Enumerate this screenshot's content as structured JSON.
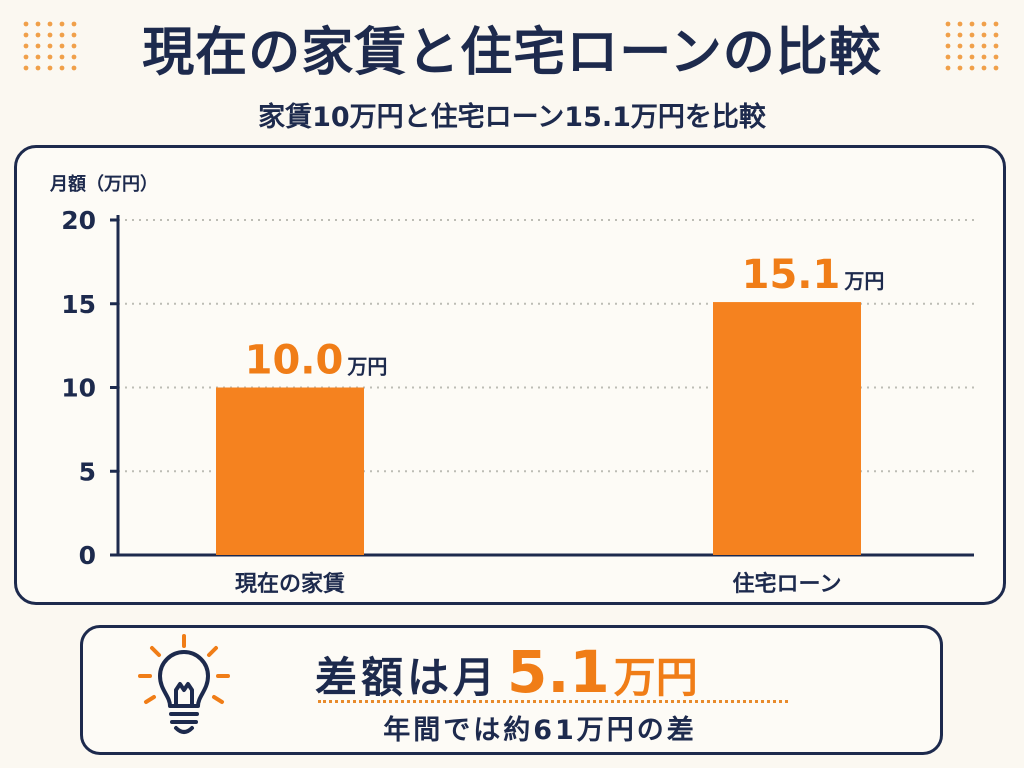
{
  "title": "現在の家賃と住宅ローンの比較",
  "subtitle": "家賃10万円と住宅ローン15.1万円を比較",
  "chart_data": {
    "type": "bar",
    "categories": [
      "現在の家賃",
      "住宅ローン"
    ],
    "values": [
      10.0,
      15.1
    ],
    "value_labels": [
      "10.0",
      "15.1"
    ],
    "value_unit": "万円",
    "ylabel": "月額（万円）",
    "ylim": [
      0,
      20
    ],
    "yticks": [
      0,
      5,
      10,
      15,
      20
    ],
    "grid": true,
    "bar_color": "#f5821f",
    "label_color": "#f07d17"
  },
  "summary": {
    "headline_prefix": "差額は月",
    "headline_value": "5.1",
    "headline_unit": "万円",
    "subtext": "年間では約61万円の差"
  },
  "icons": {
    "summary_icon": "lightbulb-icon",
    "decoration": "dot-grid-icon"
  },
  "colors": {
    "accent": "#f5821f",
    "navy": "#1d2a4d",
    "background": "#fbf8f1"
  }
}
